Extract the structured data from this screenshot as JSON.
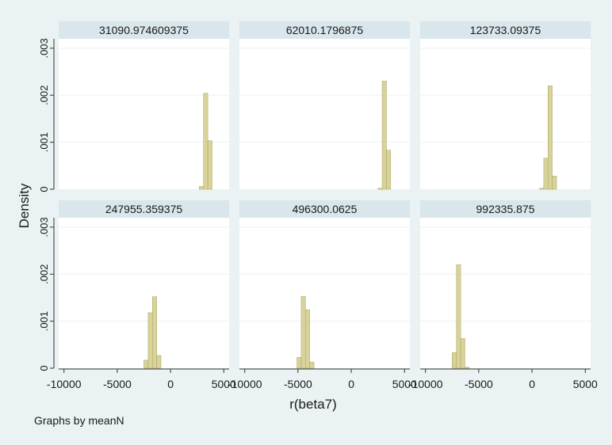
{
  "figure": {
    "ylabel": "Density",
    "xlabel": "r(beta7)",
    "note": "Graphs by meanN"
  },
  "colors": {
    "background": "#eaf2f3",
    "panel_bg": "#ffffff",
    "strip_bg": "#d9e6eb",
    "bar_fill": "#d8d39a",
    "bar_stroke": "#a9a35e",
    "grid": "#eaf2f3"
  },
  "chart_data": {
    "type": "bar",
    "subtype": "histogram-small-multiples",
    "x_label": "r(beta7)",
    "y_label": "Density",
    "xlim": [
      -10500,
      5500
    ],
    "ylim": [
      0,
      0.0032
    ],
    "x_ticks": [
      -10000,
      -5000,
      0,
      5000
    ],
    "x_tick_labels": [
      "-10000",
      "-5000",
      "0",
      "5000"
    ],
    "y_ticks": [
      0,
      0.001,
      0.002,
      0.003
    ],
    "y_tick_labels": [
      "0",
      ".001",
      ".002",
      ".003"
    ],
    "bin_width": 400,
    "grid": true,
    "panels": [
      {
        "title": "31090.974609375",
        "bins": [
          {
            "x": 2900,
            "density": 6e-05
          },
          {
            "x": 3300,
            "density": 0.00204
          },
          {
            "x": 3700,
            "density": 0.00103
          }
        ]
      },
      {
        "title": "62010.1796875",
        "bins": [
          {
            "x": 2700,
            "density": 2e-05
          },
          {
            "x": 3100,
            "density": 0.0023
          },
          {
            "x": 3500,
            "density": 0.00083
          }
        ]
      },
      {
        "title": "123733.09375",
        "bins": [
          {
            "x": 900,
            "density": 2e-05
          },
          {
            "x": 1300,
            "density": 0.00066
          },
          {
            "x": 1700,
            "density": 0.0022
          },
          {
            "x": 2100,
            "density": 0.00028
          }
        ]
      },
      {
        "title": "247955.359375",
        "bins": [
          {
            "x": -2300,
            "density": 0.00017
          },
          {
            "x": -1900,
            "density": 0.00118
          },
          {
            "x": -1500,
            "density": 0.00152
          },
          {
            "x": -1100,
            "density": 0.00027
          }
        ]
      },
      {
        "title": "496300.0625",
        "bins": [
          {
            "x": -4900,
            "density": 0.00023
          },
          {
            "x": -4500,
            "density": 0.00153
          },
          {
            "x": -4100,
            "density": 0.00124
          },
          {
            "x": -3700,
            "density": 0.00013
          }
        ]
      },
      {
        "title": "992335.875",
        "bins": [
          {
            "x": -7300,
            "density": 0.00033
          },
          {
            "x": -6900,
            "density": 0.0022
          },
          {
            "x": -6500,
            "density": 0.00063
          },
          {
            "x": -6100,
            "density": 2e-05
          }
        ]
      }
    ]
  }
}
